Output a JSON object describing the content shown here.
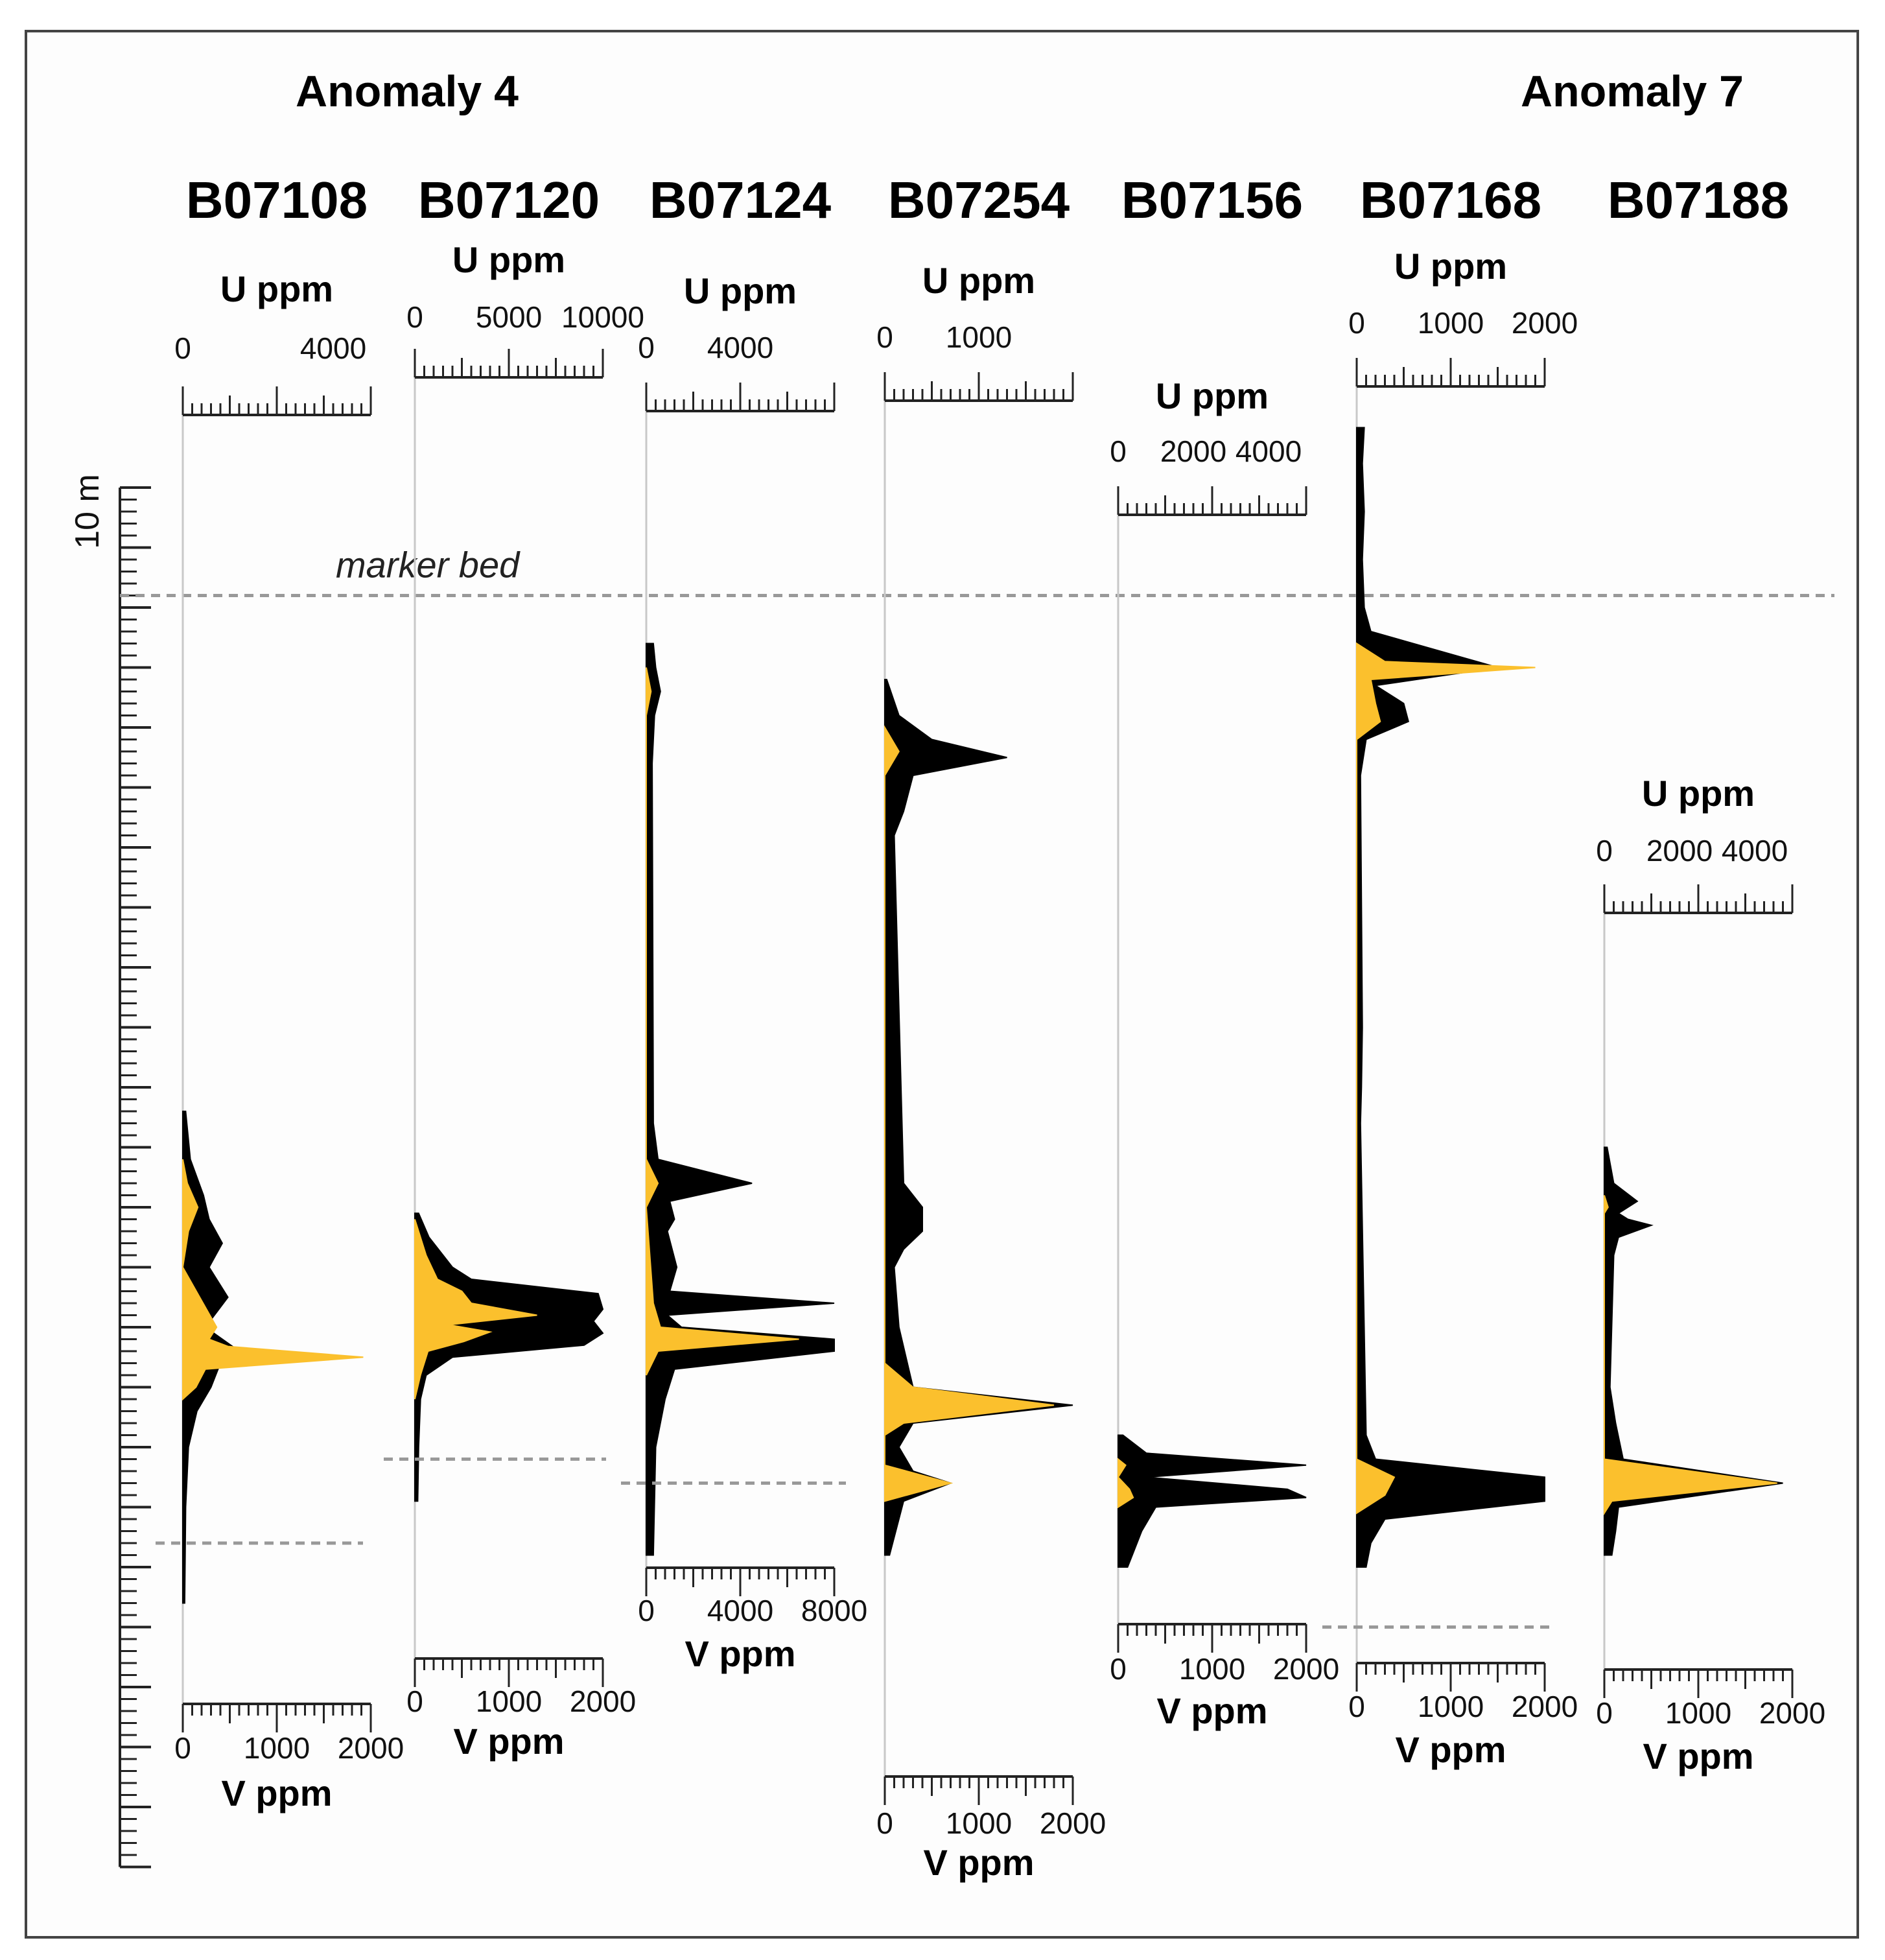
{
  "chart_data": {
    "type": "area",
    "title": "",
    "groups": [
      {
        "label": "Anomaly 4",
        "cores": [
          "B07108",
          "B07120",
          "B07124"
        ]
      },
      {
        "label": "Anomaly 7",
        "cores": [
          "B07168",
          "B07188"
        ]
      }
    ],
    "depth_scale": {
      "label": "10 m",
      "range_m": [
        0,
        11.5
      ],
      "major_tick_m": 0.5,
      "minor_tick_m": 0.1
    },
    "marker_bed": {
      "label": "marker bed",
      "depth_m": 0.9
    },
    "colors": {
      "U": "#FBC02D",
      "V": "#000000",
      "marker": "#999999"
    },
    "series": [
      {
        "name": "B07108",
        "u": {
          "label": "U ppm",
          "ticks": [
            "0",
            "4000"
          ],
          "max": 5000
        },
        "v": {
          "label": "V ppm",
          "ticks": [
            "0",
            "1000",
            "2000"
          ],
          "max": 2000
        },
        "depth_range_m": [
          5.2,
          9.3
        ],
        "base_depth_m": 8.8,
        "v_profile": [
          [
            5.2,
            30
          ],
          [
            5.6,
            80
          ],
          [
            5.9,
            220
          ],
          [
            6.1,
            280
          ],
          [
            6.3,
            420
          ],
          [
            6.5,
            280
          ],
          [
            6.75,
            480
          ],
          [
            7.0,
            240
          ],
          [
            7.2,
            600
          ],
          [
            7.3,
            400
          ],
          [
            7.5,
            300
          ],
          [
            7.7,
            150
          ],
          [
            8.0,
            60
          ],
          [
            8.5,
            30
          ],
          [
            9.3,
            20
          ]
        ],
        "u_profile": [
          [
            5.6,
            0
          ],
          [
            5.8,
            120
          ],
          [
            6.0,
            400
          ],
          [
            6.2,
            150
          ],
          [
            6.5,
            0
          ],
          [
            7.0,
            900
          ],
          [
            7.1,
            700
          ],
          [
            7.16,
            1200
          ],
          [
            7.25,
            4800
          ],
          [
            7.35,
            600
          ],
          [
            7.5,
            350
          ],
          [
            7.6,
            0
          ]
        ]
      },
      {
        "name": "B07120",
        "u": {
          "label": "U ppm",
          "ticks": [
            "0",
            "5000",
            "10000"
          ],
          "max": 10000
        },
        "v": {
          "label": "V ppm",
          "ticks": [
            "0",
            "1000",
            "2000"
          ],
          "max": 2000
        },
        "depth_range_m": [
          6.05,
          8.45
        ],
        "base_depth_m": 8.1,
        "v_profile": [
          [
            6.05,
            40
          ],
          [
            6.25,
            150
          ],
          [
            6.5,
            400
          ],
          [
            6.6,
            600
          ],
          [
            6.72,
            1950
          ],
          [
            6.85,
            2000
          ],
          [
            6.95,
            1900
          ],
          [
            7.05,
            2000
          ],
          [
            7.15,
            1800
          ],
          [
            7.25,
            400
          ],
          [
            7.4,
            120
          ],
          [
            7.6,
            60
          ],
          [
            8.0,
            40
          ],
          [
            8.45,
            30
          ]
        ],
        "u_profile": [
          [
            6.1,
            0
          ],
          [
            6.4,
            600
          ],
          [
            6.6,
            1200
          ],
          [
            6.7,
            2500
          ],
          [
            6.8,
            3000
          ],
          [
            6.9,
            6500
          ],
          [
            6.98,
            1800
          ],
          [
            7.04,
            4000
          ],
          [
            7.12,
            2600
          ],
          [
            7.2,
            700
          ],
          [
            7.4,
            300
          ],
          [
            7.6,
            0
          ]
        ]
      },
      {
        "name": "B07124",
        "u": {
          "label": "U ppm",
          "ticks": [
            "0",
            "4000"
          ],
          "max": 8000
        },
        "v": {
          "label": "V ppm",
          "ticks": [
            "0",
            "4000",
            "8000"
          ],
          "max": 8000
        },
        "depth_range_m": [
          1.3,
          8.9
        ],
        "base_depth_m": 8.3,
        "v_profile": [
          [
            1.3,
            300
          ],
          [
            1.5,
            400
          ],
          [
            1.7,
            600
          ],
          [
            1.9,
            350
          ],
          [
            2.3,
            250
          ],
          [
            5.3,
            300
          ],
          [
            5.6,
            500
          ],
          [
            5.8,
            4500
          ],
          [
            5.95,
            1000
          ],
          [
            6.1,
            1200
          ],
          [
            6.2,
            900
          ],
          [
            6.5,
            1300
          ],
          [
            6.7,
            1000
          ],
          [
            6.8,
            8000
          ],
          [
            6.9,
            900
          ],
          [
            7.0,
            1500
          ],
          [
            7.1,
            8000
          ],
          [
            7.2,
            8000
          ],
          [
            7.35,
            1200
          ],
          [
            7.6,
            800
          ],
          [
            8.0,
            400
          ],
          [
            8.9,
            300
          ]
        ],
        "u_profile": [
          [
            1.5,
            0
          ],
          [
            1.7,
            200
          ],
          [
            1.9,
            0
          ],
          [
            5.6,
            0
          ],
          [
            5.8,
            500
          ],
          [
            6.0,
            0
          ],
          [
            6.8,
            300
          ],
          [
            7.0,
            600
          ],
          [
            7.1,
            6500
          ],
          [
            7.2,
            500
          ],
          [
            7.4,
            0
          ]
        ]
      },
      {
        "name": "B07254",
        "u": {
          "label": "U ppm",
          "ticks": [
            "0",
            "1000"
          ],
          "max": 2000
        },
        "v": {
          "label": "V ppm",
          "ticks": [
            "0",
            "1000",
            "2000"
          ],
          "max": 2000
        },
        "depth_range_m": [
          1.6,
          8.9
        ],
        "base_depth_m": null,
        "v_profile": [
          [
            1.6,
            20
          ],
          [
            1.9,
            150
          ],
          [
            2.1,
            500
          ],
          [
            2.25,
            1300
          ],
          [
            2.4,
            300
          ],
          [
            2.7,
            200
          ],
          [
            2.9,
            100
          ],
          [
            5.8,
            200
          ],
          [
            6.0,
            400
          ],
          [
            6.2,
            400
          ],
          [
            6.35,
            200
          ],
          [
            6.5,
            100
          ],
          [
            7.0,
            150
          ],
          [
            7.5,
            300
          ],
          [
            7.65,
            2000
          ],
          [
            7.8,
            300
          ],
          [
            8.0,
            150
          ],
          [
            8.2,
            300
          ],
          [
            8.3,
            700
          ],
          [
            8.45,
            200
          ],
          [
            8.9,
            50
          ]
        ],
        "u_profile": [
          [
            2.0,
            0
          ],
          [
            2.2,
            150
          ],
          [
            2.4,
            0
          ],
          [
            7.3,
            0
          ],
          [
            7.5,
            300
          ],
          [
            7.65,
            1800
          ],
          [
            7.8,
            200
          ],
          [
            7.9,
            0
          ],
          [
            8.15,
            0
          ],
          [
            8.3,
            700
          ],
          [
            8.45,
            0
          ]
        ]
      },
      {
        "name": "B07156",
        "u": {
          "label": "U ppm",
          "ticks": [
            "0",
            "2000",
            "4000"
          ],
          "max": 5000
        },
        "v": {
          "label": "V ppm",
          "ticks": [
            "0",
            "1000",
            "2000"
          ],
          "max": 2000
        },
        "depth_range_m": [
          7.9,
          9.0
        ],
        "base_depth_m": null,
        "v_profile": [
          [
            7.9,
            50
          ],
          [
            8.05,
            300
          ],
          [
            8.15,
            2000
          ],
          [
            8.25,
            300
          ],
          [
            8.35,
            1800
          ],
          [
            8.42,
            2000
          ],
          [
            8.5,
            400
          ],
          [
            8.7,
            250
          ],
          [
            8.9,
            150
          ],
          [
            9.0,
            100
          ]
        ],
        "u_profile": [
          [
            8.1,
            0
          ],
          [
            8.15,
            200
          ],
          [
            8.25,
            0
          ],
          [
            8.35,
            300
          ],
          [
            8.42,
            400
          ],
          [
            8.5,
            0
          ]
        ]
      },
      {
        "name": "B07168",
        "u": {
          "label": "U ppm",
          "ticks": [
            "0",
            "1000",
            "2000"
          ],
          "max": 2000
        },
        "v": {
          "label": "V ppm",
          "ticks": [
            "0",
            "1000",
            "2000"
          ],
          "max": 2000
        },
        "depth_range_m": [
          -0.5,
          9.0
        ],
        "base_depth_m": 9.5,
        "v_profile": [
          [
            -0.5,
            80
          ],
          [
            -0.2,
            60
          ],
          [
            0.2,
            80
          ],
          [
            0.6,
            60
          ],
          [
            1.0,
            80
          ],
          [
            1.2,
            150
          ],
          [
            1.5,
            1500
          ],
          [
            1.65,
            200
          ],
          [
            1.8,
            500
          ],
          [
            1.95,
            550
          ],
          [
            2.1,
            100
          ],
          [
            2.4,
            40
          ],
          [
            4.5,
            60
          ],
          [
            5.0,
            50
          ],
          [
            5.3,
            40
          ],
          [
            7.9,
            100
          ],
          [
            8.1,
            200
          ],
          [
            8.25,
            2000
          ],
          [
            8.45,
            2000
          ],
          [
            8.6,
            300
          ],
          [
            8.8,
            150
          ],
          [
            9.0,
            100
          ]
        ],
        "u_profile": [
          [
            1.3,
            0
          ],
          [
            1.45,
            300
          ],
          [
            1.5,
            1900
          ],
          [
            1.6,
            150
          ],
          [
            1.8,
            200
          ],
          [
            1.95,
            250
          ],
          [
            2.1,
            0
          ],
          [
            8.1,
            0
          ],
          [
            8.25,
            400
          ],
          [
            8.4,
            300
          ],
          [
            8.55,
            0
          ]
        ]
      },
      {
        "name": "B07188",
        "u": {
          "label": "U ppm",
          "ticks": [
            "0",
            "2000",
            "4000"
          ],
          "max": 5000
        },
        "v": {
          "label": "V ppm",
          "ticks": [
            "0",
            "1000",
            "2000"
          ],
          "max": 2000
        },
        "depth_range_m": [
          5.5,
          8.9
        ],
        "base_depth_m": null,
        "v_profile": [
          [
            5.5,
            30
          ],
          [
            5.8,
            100
          ],
          [
            5.95,
            350
          ],
          [
            6.05,
            150
          ],
          [
            6.1,
            250
          ],
          [
            6.15,
            500
          ],
          [
            6.25,
            150
          ],
          [
            6.4,
            100
          ],
          [
            7.5,
            60
          ],
          [
            7.8,
            120
          ],
          [
            8.1,
            200
          ],
          [
            8.3,
            1900
          ],
          [
            8.5,
            150
          ],
          [
            8.7,
            120
          ],
          [
            8.9,
            80
          ]
        ],
        "u_profile": [
          [
            5.9,
            0
          ],
          [
            6.0,
            100
          ],
          [
            6.05,
            0
          ],
          [
            8.1,
            0
          ],
          [
            8.3,
            4600
          ],
          [
            8.45,
            200
          ],
          [
            8.55,
            0
          ]
        ]
      }
    ]
  }
}
